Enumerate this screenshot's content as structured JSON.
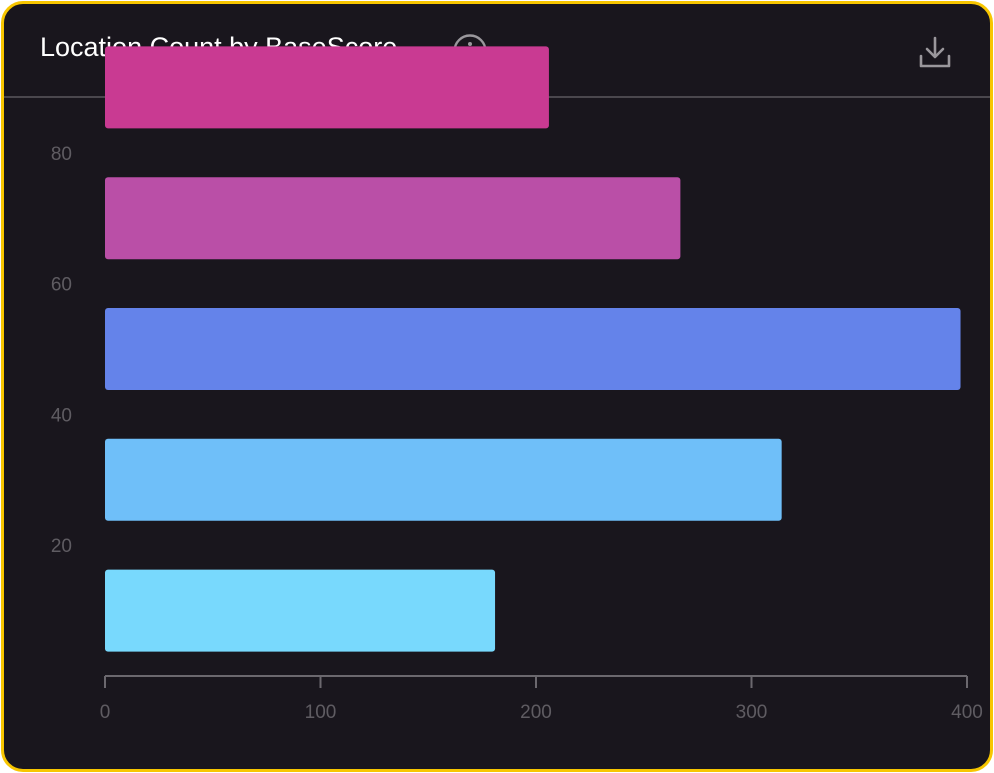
{
  "header": {
    "title": "Location Count by BaseScore",
    "info_icon": "info-icon",
    "download_icon": "download-icon"
  },
  "colors": {
    "card_background": "#19161d",
    "border": "#f7c600",
    "axis": "#6b686e",
    "tick_label": "#5f5c62"
  },
  "chart_data": {
    "type": "bar",
    "orientation": "horizontal",
    "title": "Location Count by BaseScore",
    "x_ticks": [
      0,
      100,
      200,
      300,
      400
    ],
    "xlim": [
      0,
      400
    ],
    "y_ticks": [
      20,
      40,
      60,
      80
    ],
    "ylim": [
      0,
      100
    ],
    "grid": false,
    "bars": [
      {
        "y_center": 90,
        "value": 206,
        "color": "#c93a92"
      },
      {
        "y_center": 70,
        "value": 267,
        "color": "#ba4fa7"
      },
      {
        "y_center": 50,
        "value": 397,
        "color": "#6483ea"
      },
      {
        "y_center": 30,
        "value": 314,
        "color": "#6fbff9"
      },
      {
        "y_center": 10,
        "value": 181,
        "color": "#78d9fd"
      }
    ]
  }
}
